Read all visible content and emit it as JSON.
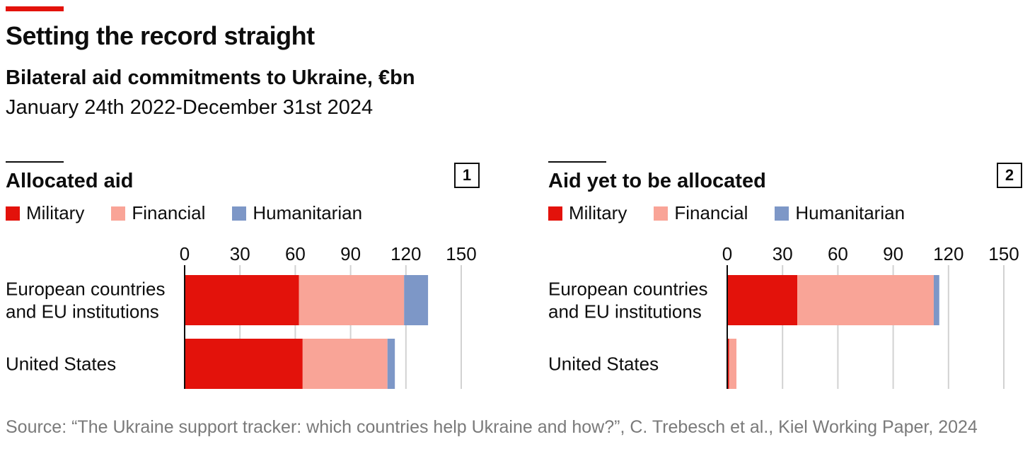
{
  "header": {
    "title": "Setting the record straight",
    "subtitle": "Bilateral aid commitments to Ukraine, €bn",
    "date_range": "January 24th 2022-December 31st 2024"
  },
  "legend": [
    {
      "label": "Military",
      "color": "#e3120b"
    },
    {
      "label": "Financial",
      "color": "#f9a497"
    },
    {
      "label": "Humanitarian",
      "color": "#7d97c7"
    }
  ],
  "source": "Source: “The Ukraine support tracker: which countries help Ukraine and how?”, C. Trebesch et al., Kiel Working Paper, 2024",
  "chart_data": [
    {
      "type": "bar",
      "orientation": "horizontal",
      "stacked": true,
      "title": "Allocated aid",
      "badge": "1",
      "categories": [
        "European countries\nand EU institutions",
        "United States"
      ],
      "series": [
        {
          "name": "Military",
          "values": [
            62,
            64
          ]
        },
        {
          "name": "Financial",
          "values": [
            57,
            46
          ]
        },
        {
          "name": "Humanitarian",
          "values": [
            13,
            4
          ]
        }
      ],
      "xlim": [
        0,
        150
      ],
      "xticks": [
        0,
        30,
        60,
        90,
        120,
        150
      ],
      "grid": true
    },
    {
      "type": "bar",
      "orientation": "horizontal",
      "stacked": true,
      "title": "Aid yet to be allocated",
      "badge": "2",
      "categories": [
        "European countries\nand EU institutions",
        "United States"
      ],
      "series": [
        {
          "name": "Military",
          "values": [
            38,
            1
          ]
        },
        {
          "name": "Financial",
          "values": [
            74,
            4
          ]
        },
        {
          "name": "Humanitarian",
          "values": [
            3,
            0
          ]
        }
      ],
      "xlim": [
        0,
        150
      ],
      "xticks": [
        0,
        30,
        60,
        90,
        120,
        150
      ],
      "grid": true
    }
  ]
}
